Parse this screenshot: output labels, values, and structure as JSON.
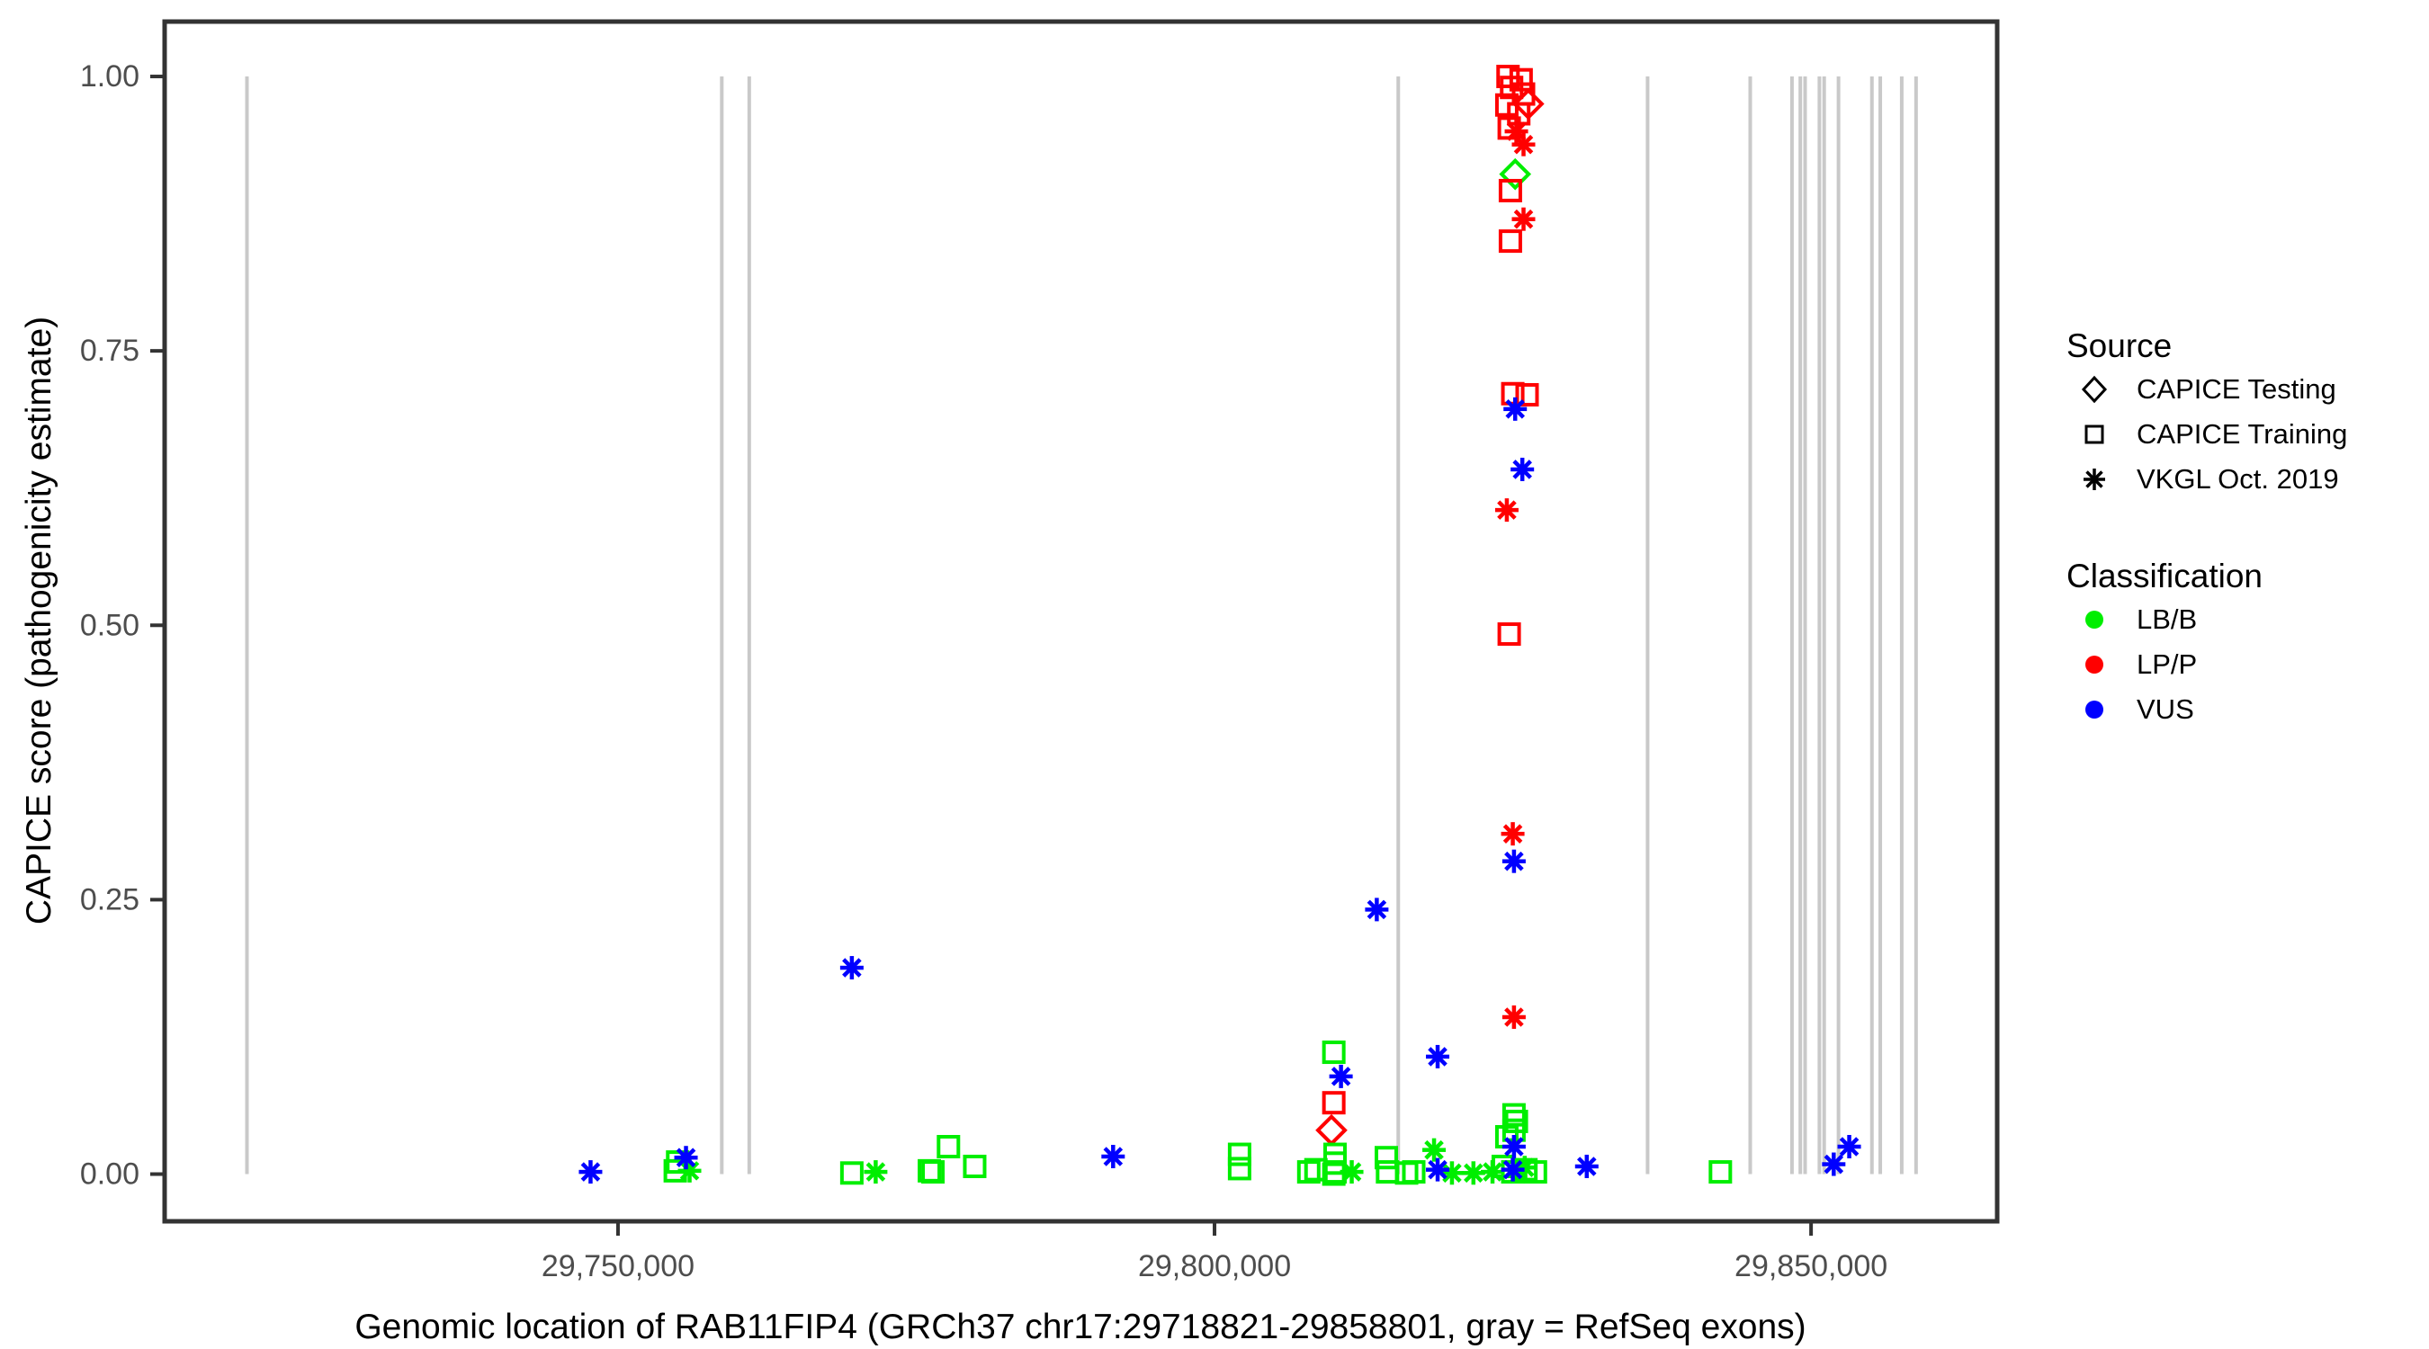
{
  "colors": {
    "lbb_green": "#00EE00",
    "lpp_red": "#FF0000",
    "vus_blue": "#0000FF",
    "exon_gray": "#C9C9C9",
    "panel_border": "#333333",
    "tick_label": "#4D4D4D",
    "legend_icon": "#000000"
  },
  "legend": {
    "source_title": "Source",
    "source_items": [
      {
        "label": "CAPICE Testing",
        "shape": "diamond"
      },
      {
        "label": "CAPICE Training",
        "shape": "square"
      },
      {
        "label": "VKGL Oct. 2019",
        "shape": "asterisk"
      }
    ],
    "classification_title": "Classification",
    "classification_items": [
      {
        "label": "LB/B",
        "color": "#00EE00"
      },
      {
        "label": "LP/P",
        "color": "#FF0000"
      },
      {
        "label": "VUS",
        "color": "#0000FF"
      }
    ]
  },
  "chart_data": {
    "type": "scatter",
    "title": "",
    "xlabel": "Genomic location of RAB11FIP4 (GRCh37 chr17:29718821-29858801, gray = RefSeq exons)",
    "ylabel": "CAPICE score (pathogenicity estimate)",
    "xlim": [
      29712000,
      29865600
    ],
    "ylim": [
      -0.043,
      1.05
    ],
    "grid": false,
    "legend_position": "right",
    "x_ticks": [
      {
        "value": 29750000,
        "label": "29,750,000"
      },
      {
        "value": 29800000,
        "label": "29,800,000"
      },
      {
        "value": 29850000,
        "label": "29,850,000"
      }
    ],
    "y_ticks": [
      {
        "value": 0.0,
        "label": "0.00"
      },
      {
        "value": 0.25,
        "label": "0.25"
      },
      {
        "value": 0.5,
        "label": "0.50"
      },
      {
        "value": 0.75,
        "label": "0.75"
      },
      {
        "value": 1.0,
        "label": "1.00"
      }
    ],
    "exon_note": "gray = RefSeq exons",
    "exon_line_span": [
      0.0,
      1.0
    ],
    "exon_lines": [
      29718900,
      29758700,
      29761000,
      29815400,
      29836300,
      29844900,
      29848400,
      29849100,
      29849500,
      29850700,
      29851100,
      29852300,
      29855100,
      29855800,
      29857600,
      29858800
    ],
    "series": [
      {
        "source": "CAPICE Testing",
        "classification": "LB/B",
        "shape": "diamond",
        "color": "#00EE00",
        "points": [
          [
            29825200,
            0.911
          ]
        ]
      },
      {
        "source": "CAPICE Testing",
        "classification": "LP/P",
        "shape": "diamond",
        "color": "#FF0000",
        "points": [
          [
            29826300,
            0.975
          ],
          [
            29809800,
            0.04
          ]
        ]
      },
      {
        "source": "CAPICE Training",
        "classification": "LB/B",
        "shape": "square",
        "color": "#00EE00",
        "points": [
          [
            29754800,
            0.003
          ],
          [
            29755000,
            0.011
          ],
          [
            29769600,
            0.001
          ],
          [
            29776100,
            0.003
          ],
          [
            29776400,
            0.002
          ],
          [
            29777700,
            0.025
          ],
          [
            29779900,
            0.007
          ],
          [
            29802100,
            0.018
          ],
          [
            29802100,
            0.005
          ],
          [
            29807900,
            0.002
          ],
          [
            29808500,
            0.004
          ],
          [
            29810000,
            0.111
          ],
          [
            29810100,
            0.018
          ],
          [
            29810100,
            0.01
          ],
          [
            29810100,
            0.002
          ],
          [
            29810000,
            0.0
          ],
          [
            29814400,
            0.015
          ],
          [
            29814500,
            0.002
          ],
          [
            29816100,
            0.001
          ],
          [
            29816700,
            0.002
          ],
          [
            29824500,
            0.034
          ],
          [
            29825100,
            0.054
          ],
          [
            29825300,
            0.048
          ],
          [
            29825100,
            0.04
          ],
          [
            29824200,
            0.007
          ],
          [
            29825000,
            0.002
          ],
          [
            29826100,
            0.004
          ],
          [
            29826900,
            0.002
          ],
          [
            29842400,
            0.002
          ]
        ]
      },
      {
        "source": "CAPICE Training",
        "classification": "LP/P",
        "shape": "square",
        "color": "#FF0000",
        "points": [
          [
            29824600,
            1.0
          ],
          [
            29825700,
            0.997
          ],
          [
            29824900,
            0.99
          ],
          [
            29825900,
            0.984
          ],
          [
            29824500,
            0.974
          ],
          [
            29825500,
            0.966
          ],
          [
            29824700,
            0.953
          ],
          [
            29824800,
            0.896
          ],
          [
            29824800,
            0.85
          ],
          [
            29825000,
            0.711
          ],
          [
            29826200,
            0.71
          ],
          [
            29824700,
            0.492
          ],
          [
            29810000,
            0.065
          ]
        ]
      },
      {
        "source": "VKGL Oct. 2019",
        "classification": "LB/B",
        "shape": "asterisk",
        "color": "#00EE00",
        "points": [
          [
            29756000,
            0.003
          ],
          [
            29771600,
            0.002
          ],
          [
            29811500,
            0.002
          ],
          [
            29818400,
            0.022
          ],
          [
            29819900,
            0.001
          ],
          [
            29821700,
            0.001
          ],
          [
            29823300,
            0.002
          ],
          [
            29826000,
            0.006
          ]
        ]
      },
      {
        "source": "VKGL Oct. 2019",
        "classification": "LP/P",
        "shape": "asterisk",
        "color": "#FF0000",
        "points": [
          [
            29825300,
            0.95
          ],
          [
            29825900,
            0.938
          ],
          [
            29825900,
            0.87
          ],
          [
            29824500,
            0.605
          ],
          [
            29825000,
            0.31
          ],
          [
            29825100,
            0.143
          ]
        ]
      },
      {
        "source": "VKGL Oct. 2019",
        "classification": "VUS",
        "shape": "asterisk",
        "color": "#0000FF",
        "points": [
          [
            29747700,
            0.002
          ],
          [
            29755700,
            0.015
          ],
          [
            29769600,
            0.188
          ],
          [
            29791500,
            0.016
          ],
          [
            29810600,
            0.089
          ],
          [
            29813600,
            0.241
          ],
          [
            29818700,
            0.107
          ],
          [
            29818700,
            0.004
          ],
          [
            29825200,
            0.697
          ],
          [
            29825800,
            0.642
          ],
          [
            29825100,
            0.285
          ],
          [
            29825100,
            0.025
          ],
          [
            29825000,
            0.004
          ],
          [
            29831200,
            0.007
          ],
          [
            29851900,
            0.009
          ],
          [
            29853200,
            0.025
          ]
        ]
      }
    ]
  }
}
